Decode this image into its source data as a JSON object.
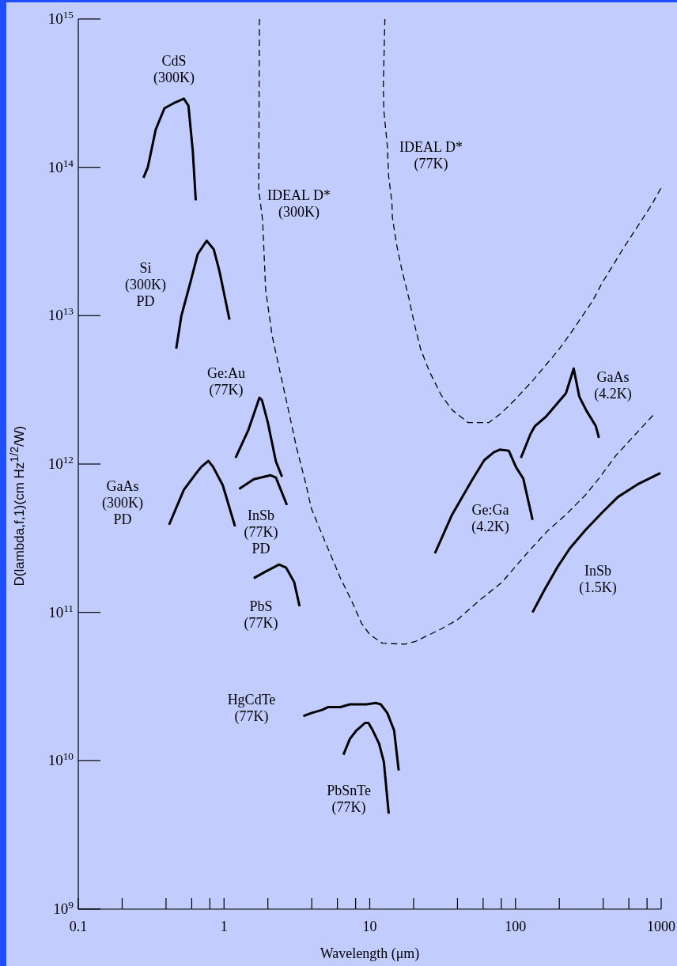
{
  "chart_data": {
    "type": "line",
    "xlabel": "Wavelength (μm)",
    "ylabel": "D(lambda,f,1)(cm Hz$^{1/2}$/W)",
    "log": "xy",
    "xlim": [
      0.1,
      1000
    ],
    "ylim": [
      1000000000.0,
      1000000000000000.0
    ],
    "xticks": [
      0.1,
      {
        "value": 0.2,
        "label": null
      },
      {
        "value": 0.4,
        "label": null
      },
      {
        "value": 0.6,
        "label": null
      },
      {
        "value": 0.8,
        "label": null
      },
      1,
      {
        "value": 2,
        "label": null
      },
      {
        "value": 4,
        "label": null
      },
      {
        "value": 6,
        "label": null
      },
      {
        "value": 8,
        "label": null
      },
      10,
      {
        "value": 20,
        "label": null
      },
      {
        "value": 40,
        "label": null
      },
      {
        "value": 60,
        "label": null
      },
      {
        "value": 80,
        "label": null
      },
      100,
      {
        "value": 200,
        "label": null
      },
      {
        "value": 400,
        "label": null
      },
      {
        "value": 600,
        "label": null
      },
      {
        "value": 800,
        "label": null
      },
      1000
    ],
    "yticks": [
      {
        "value": 1000000000.0,
        "label": "10$^{9}$"
      },
      {
        "value": 10000000000.0,
        "label": "10$^{10}$"
      },
      {
        "value": 100000000000.0,
        "label": "10$^{11}$"
      },
      {
        "value": 1000000000000.0,
        "label": "10$^{12}$"
      },
      {
        "value": 10000000000000.0,
        "label": "10$^{13}$"
      },
      {
        "value": 100000000000000.0,
        "label": "10$^{14}$"
      },
      {
        "value": 1000000000000000.0,
        "label": "10$^{15}$"
      }
    ],
    "series": [
      {
        "name": "CdS (300K)",
        "color": "#000000",
        "line_style": "solid",
        "x": [
          0.28,
          0.3,
          0.34,
          0.39,
          0.45,
          0.53,
          0.57,
          0.61,
          0.64
        ],
        "values": [
          85000000000000.0,
          100000000000000.0,
          180000000000000.0,
          250000000000000.0,
          270000000000000.0,
          290000000000000.0,
          260000000000000.0,
          130000000000000.0,
          60000000000000.0
        ]
      },
      {
        "name": "Si (300K) PD",
        "color": "#000000",
        "line_style": "solid",
        "x": [
          0.47,
          0.51,
          0.59,
          0.66,
          0.71,
          0.76,
          0.85,
          0.93,
          1.09
        ],
        "values": [
          6000000000000.0,
          10000000000000.0,
          17000000000000.0,
          26000000000000.0,
          29000000000000.0,
          32000000000000.0,
          28000000000000.0,
          20000000000000.0,
          9400000000000.0
        ]
      },
      {
        "name": "Ge:Au (77K)",
        "color": "#000000",
        "line_style": "solid",
        "x": [
          1.2,
          1.47,
          1.75,
          1.82,
          2.0,
          2.27,
          2.5
        ],
        "values": [
          1100000000000.0,
          1700000000000.0,
          2800000000000.0,
          2700000000000.0,
          1900000000000.0,
          1040000000000.0,
          820000000000.0
        ]
      },
      {
        "name": "GaAs (300K) PD",
        "color": "#000000",
        "line_style": "solid",
        "x": [
          0.42,
          0.53,
          0.64,
          0.7,
          0.78,
          0.84,
          0.98,
          1.19
        ],
        "values": [
          390000000000.0,
          670000000000.0,
          860000000000.0,
          960000000000.0,
          1050000000000.0,
          960000000000.0,
          720000000000.0,
          380000000000.0
        ]
      },
      {
        "name": "InSb (77K) PD",
        "color": "#000000",
        "line_style": "solid",
        "x": [
          1.27,
          1.6,
          2.08,
          2.27,
          2.7
        ],
        "values": [
          680000000000.0,
          790000000000.0,
          840000000000.0,
          810000000000.0,
          530000000000.0
        ]
      },
      {
        "name": "PbS (77K)",
        "color": "#000000",
        "line_style": "solid",
        "x": [
          1.6,
          1.96,
          2.39,
          2.67,
          3.03,
          3.3
        ],
        "values": [
          170000000000.0,
          190000000000.0,
          210000000000.0,
          200000000000.0,
          160000000000.0,
          110000000000.0
        ]
      },
      {
        "name": "HgCdTe (77K)",
        "color": "#000000",
        "line_style": "solid",
        "x": [
          3.5,
          4.0,
          4.7,
          5.2,
          6.3,
          7.3,
          9.5,
          11,
          11.9,
          13.2,
          14.7,
          15.8
        ],
        "values": [
          20000000000.0,
          21000000000.0,
          22000000000.0,
          23000000000.0,
          23000000000.0,
          24000000000.0,
          24000000000.0,
          24500000000.0,
          24000000000.0,
          21000000000.0,
          16000000000.0,
          8600000000.0
        ]
      },
      {
        "name": "PbSnTe (77K)",
        "color": "#000000",
        "line_style": "solid",
        "x": [
          6.6,
          7.3,
          8.1,
          9.3,
          9.8,
          10.5,
          11.6,
          12.5,
          13.5
        ],
        "values": [
          11000000000.0,
          14000000000.0,
          16000000000.0,
          18000000000.0,
          18000000000.0,
          16000000000.0,
          13000000000.0,
          9800000000.0,
          4400000000.0
        ]
      },
      {
        "name": "Ge:Ga (4.2K)",
        "color": "#000000",
        "line_style": "solid",
        "x": [
          28,
          36.5,
          50,
          61,
          71,
          78,
          90,
          101,
          113,
          131
        ],
        "values": [
          250000000000.0,
          450000000000.0,
          770000000000.0,
          1060000000000.0,
          1200000000000.0,
          1250000000000.0,
          1230000000000.0,
          950000000000.0,
          800000000000.0,
          420000000000.0
        ]
      },
      {
        "name": "GaAs (4.2K)",
        "color": "#000000",
        "line_style": "solid",
        "x": [
          109,
          127,
          136,
          163,
          222,
          251,
          274,
          306,
          356,
          374
        ],
        "values": [
          1100000000000.0,
          1600000000000.0,
          1800000000000.0,
          2100000000000.0,
          3000000000000.0,
          4400000000000.0,
          2850000000000.0,
          2300000000000.0,
          1800000000000.0,
          1500000000000.0
        ]
      },
      {
        "name": "InSb (1.5K)",
        "color": "#000000",
        "line_style": "solid",
        "x": [
          131,
          157,
          193,
          236,
          303,
          393,
          505,
          689,
          988
        ],
        "values": [
          100000000000.0,
          140000000000.0,
          200000000000.0,
          270000000000.0,
          360000000000.0,
          470000000000.0,
          600000000000.0,
          730000000000.0,
          870000000000.0
        ]
      },
      {
        "name": "IDEAL D* (300K)",
        "color": "#000000",
        "line_style": "dashed",
        "x": [
          1.75,
          1.73,
          1.84,
          1.93,
          2.14,
          2.36,
          2.77,
          3.14,
          3.65,
          3.98,
          4.8,
          6.3,
          7.5,
          8.8,
          10,
          12.2,
          17.5,
          20.8,
          30.6,
          39.8,
          56.4,
          81,
          122,
          164,
          224,
          303,
          374,
          492,
          905
        ],
        "values": [
          1000000000000000.0,
          71000000000000.0,
          44000000000000.0,
          15000000000000.0,
          7300000000000.0,
          4700000000000.0,
          2300000000000.0,
          1300000000000.0,
          730000000000.0,
          500000000000.0,
          320000000000.0,
          170000000000.0,
          120000000000.0,
          84000000000.0,
          71000000000.0,
          62000000000.0,
          61000000000.0,
          64000000000.0,
          77000000000.0,
          89000000000.0,
          120000000000.0,
          160000000000.0,
          255000000000.0,
          350000000000.0,
          460000000000.0,
          620000000000.0,
          800000000000.0,
          1150000000000.0,
          2200000000000.0
        ]
      },
      {
        "name": "IDEAL D* (77K)",
        "color": "#000000",
        "line_style": "dashed",
        "x": [
          12.7,
          12.4,
          12.5,
          13.2,
          13.5,
          14.2,
          14.3,
          15.3,
          16.5,
          18.6,
          20.3,
          22.4,
          25.7,
          31,
          37,
          47.4,
          65.5,
          80,
          98.8,
          133,
          198,
          239,
          339,
          393,
          557,
          861,
          1000
        ],
        "values": [
          1000000000000000.0,
          360000000000000.0,
          240000000000000.0,
          140000000000000.0,
          86000000000000.0,
          58000000000000.0,
          46000000000000.0,
          30000000000000.0,
          21000000000000.0,
          13000000000000.0,
          8700000000000.0,
          5900000000000.0,
          4200000000000.0,
          2900000000000.0,
          2300000000000.0,
          1900000000000.0,
          1900000000000.0,
          2200000000000.0,
          2700000000000.0,
          3700000000000.0,
          5900000000000.0,
          7600000000000.0,
          12600000000000.0,
          16600000000000.0,
          29000000000000.0,
          56000000000000.0,
          73000000000000.0
        ]
      }
    ]
  }
}
